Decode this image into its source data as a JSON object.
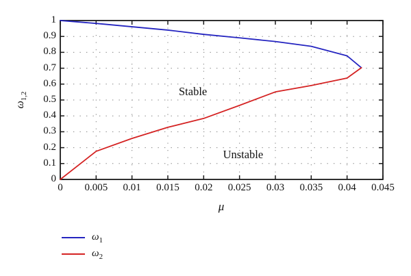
{
  "figure": {
    "background": "#ffffff"
  },
  "chart_data": {
    "type": "line",
    "title": "",
    "xlabel": "μ",
    "ylabel_base": "ω",
    "ylabel_sub": "1,2",
    "xlim": [
      0,
      0.045
    ],
    "ylim": [
      0,
      1
    ],
    "x_tick_values": [
      0,
      0.005,
      0.01,
      0.015,
      0.02,
      0.025,
      0.03,
      0.035,
      0.04,
      0.045
    ],
    "x_tick_labels": [
      "0",
      "0.005",
      "0.01",
      "0.015",
      "0.02",
      "0.025",
      "0.03",
      "0.035",
      "0.04",
      "0.045"
    ],
    "y_tick_values": [
      0,
      0.1,
      0.2,
      0.3,
      0.4,
      0.5,
      0.6,
      0.7,
      0.8,
      0.9,
      1
    ],
    "y_tick_labels": [
      "0",
      "0.1",
      "0.2",
      "0.3",
      "0.4",
      "0.5",
      "0.6",
      "0.7",
      "0.8",
      "0.9",
      "1"
    ],
    "grid": "dotted",
    "grid_color": "#7a7a7a",
    "axis_color": "#1a1a1a",
    "series": [
      {
        "name": "omega1",
        "label_base": "ω",
        "label_sub": "1",
        "color": "#2424c0",
        "x": [
          0,
          0.005,
          0.01,
          0.015,
          0.02,
          0.025,
          0.03,
          0.035,
          0.04,
          0.042
        ],
        "y": [
          1,
          0.982,
          0.961,
          0.94,
          0.913,
          0.891,
          0.868,
          0.838,
          0.778,
          0.703
        ]
      },
      {
        "name": "omega2",
        "label_base": "ω",
        "label_sub": "2",
        "color": "#d42222",
        "x": [
          0,
          0.005,
          0.01,
          0.015,
          0.02,
          0.025,
          0.03,
          0.035,
          0.04,
          0.042
        ],
        "y": [
          0,
          0.177,
          0.258,
          0.328,
          0.384,
          0.466,
          0.551,
          0.591,
          0.638,
          0.703
        ]
      }
    ],
    "annotations": [
      {
        "text": "Stable",
        "x": 0.0185,
        "y": 0.552
      },
      {
        "text": "Unstable",
        "x": 0.0255,
        "y": 0.155
      }
    ],
    "legend_position": "bottom-left"
  }
}
